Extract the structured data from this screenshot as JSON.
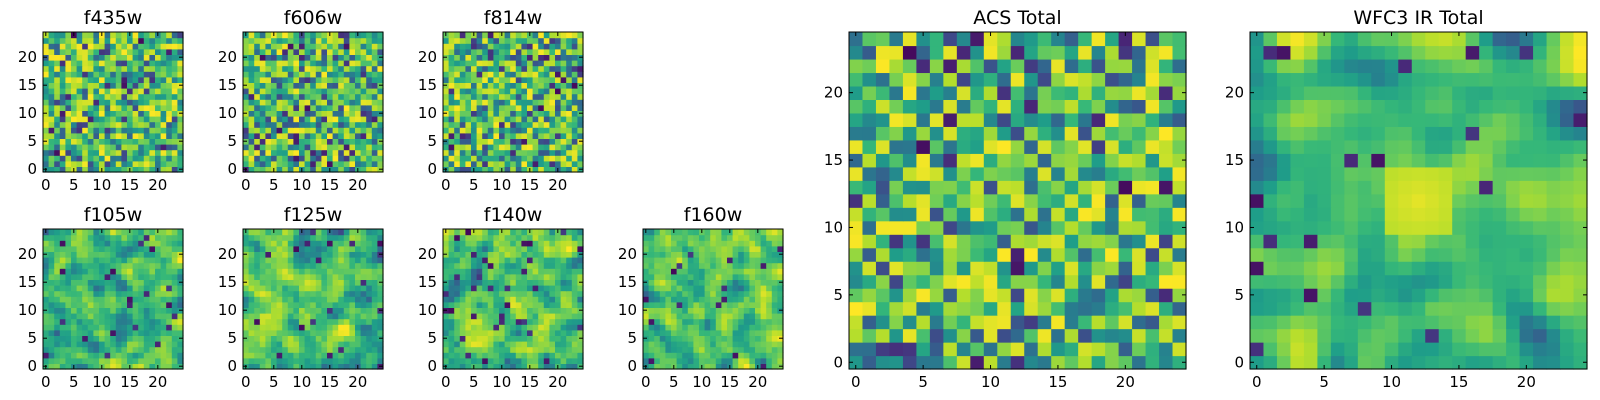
{
  "chart_data": [
    {
      "type": "heatmap",
      "title": "f435w",
      "grid_size": 25,
      "colormap": "viridis",
      "seed": 11,
      "smooth": 0,
      "xticks": [
        0,
        5,
        10,
        15,
        20
      ],
      "yticks": [
        0,
        5,
        10,
        15,
        20
      ],
      "xlim": [
        -0.5,
        24.5
      ],
      "ylim": [
        -0.5,
        24.5
      ]
    },
    {
      "type": "heatmap",
      "title": "f606w",
      "grid_size": 25,
      "colormap": "viridis",
      "seed": 23,
      "smooth": 0,
      "xticks": [
        0,
        5,
        10,
        15,
        20
      ],
      "yticks": [
        0,
        5,
        10,
        15,
        20
      ],
      "xlim": [
        -0.5,
        24.5
      ],
      "ylim": [
        -0.5,
        24.5
      ]
    },
    {
      "type": "heatmap",
      "title": "f814w",
      "grid_size": 25,
      "colormap": "viridis",
      "seed": 37,
      "smooth": 0,
      "xticks": [
        0,
        5,
        10,
        15,
        20
      ],
      "yticks": [
        0,
        5,
        10,
        15,
        20
      ],
      "xlim": [
        -0.5,
        24.5
      ],
      "ylim": [
        -0.5,
        24.5
      ]
    },
    {
      "type": "heatmap",
      "title": "f105w",
      "grid_size": 25,
      "colormap": "viridis",
      "seed": 41,
      "smooth": 1,
      "xticks": [
        0,
        5,
        10,
        15,
        20
      ],
      "yticks": [
        0,
        5,
        10,
        15,
        20
      ],
      "xlim": [
        -0.5,
        24.5
      ],
      "ylim": [
        -0.5,
        24.5
      ]
    },
    {
      "type": "heatmap",
      "title": "f125w",
      "grid_size": 25,
      "colormap": "viridis",
      "seed": 53,
      "smooth": 1,
      "xticks": [
        0,
        5,
        10,
        15,
        20
      ],
      "yticks": [
        0,
        5,
        10,
        15,
        20
      ],
      "xlim": [
        -0.5,
        24.5
      ],
      "ylim": [
        -0.5,
        24.5
      ]
    },
    {
      "type": "heatmap",
      "title": "f140w",
      "grid_size": 25,
      "colormap": "viridis",
      "seed": 67,
      "smooth": 1,
      "xticks": [
        0,
        5,
        10,
        15,
        20
      ],
      "yticks": [
        0,
        5,
        10,
        15,
        20
      ],
      "xlim": [
        -0.5,
        24.5
      ],
      "ylim": [
        -0.5,
        24.5
      ]
    },
    {
      "type": "heatmap",
      "title": "f160w",
      "grid_size": 25,
      "colormap": "viridis",
      "seed": 79,
      "smooth": 1,
      "xticks": [
        0,
        5,
        10,
        15,
        20
      ],
      "yticks": [
        0,
        5,
        10,
        15,
        20
      ],
      "xlim": [
        -0.5,
        24.5
      ],
      "ylim": [
        -0.5,
        24.5
      ]
    },
    {
      "type": "heatmap",
      "title": "ACS Total",
      "grid_size": 25,
      "colormap": "viridis",
      "seed": 97,
      "smooth": 0,
      "xticks": [
        0,
        5,
        10,
        15,
        20
      ],
      "yticks": [
        0,
        5,
        10,
        15,
        20
      ],
      "xlim": [
        -0.5,
        24.5
      ],
      "ylim": [
        -0.5,
        24.5
      ]
    },
    {
      "type": "heatmap",
      "title": "WFC3 IR Total",
      "grid_size": 25,
      "colormap": "viridis",
      "seed": 113,
      "smooth": 2,
      "bright_blob": [
        12,
        12
      ],
      "xticks": [
        0,
        5,
        10,
        15,
        20
      ],
      "yticks": [
        0,
        5,
        10,
        15,
        20
      ],
      "xlim": [
        -0.5,
        24.5
      ],
      "ylim": [
        -0.5,
        24.5
      ]
    }
  ]
}
